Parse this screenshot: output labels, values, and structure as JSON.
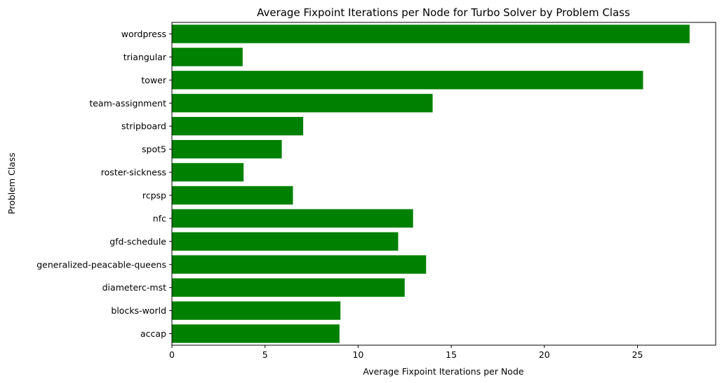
{
  "chart_data": {
    "type": "bar",
    "orientation": "horizontal",
    "title": "Average Fixpoint Iterations per Node for Turbo Solver by Problem Class",
    "xlabel": "Average Fixpoint Iterations per Node",
    "ylabel": "Problem Class",
    "categories": [
      "accap",
      "blocks-world",
      "diameterc-mst",
      "generalized-peacable-queens",
      "gfd-schedule",
      "nfc",
      "rcpsp",
      "roster-sickness",
      "spot5",
      "stripboard",
      "team-assignment",
      "tower",
      "triangular",
      "wordpress"
    ],
    "values": [
      9.0,
      9.05,
      12.5,
      13.65,
      12.15,
      12.95,
      6.5,
      3.85,
      5.9,
      7.05,
      14.0,
      25.3,
      3.8,
      27.8
    ],
    "xlim": [
      0,
      29.2
    ],
    "xticks": [
      0,
      5,
      10,
      15,
      20,
      25
    ],
    "bar_color": "#008000",
    "grid": false
  }
}
